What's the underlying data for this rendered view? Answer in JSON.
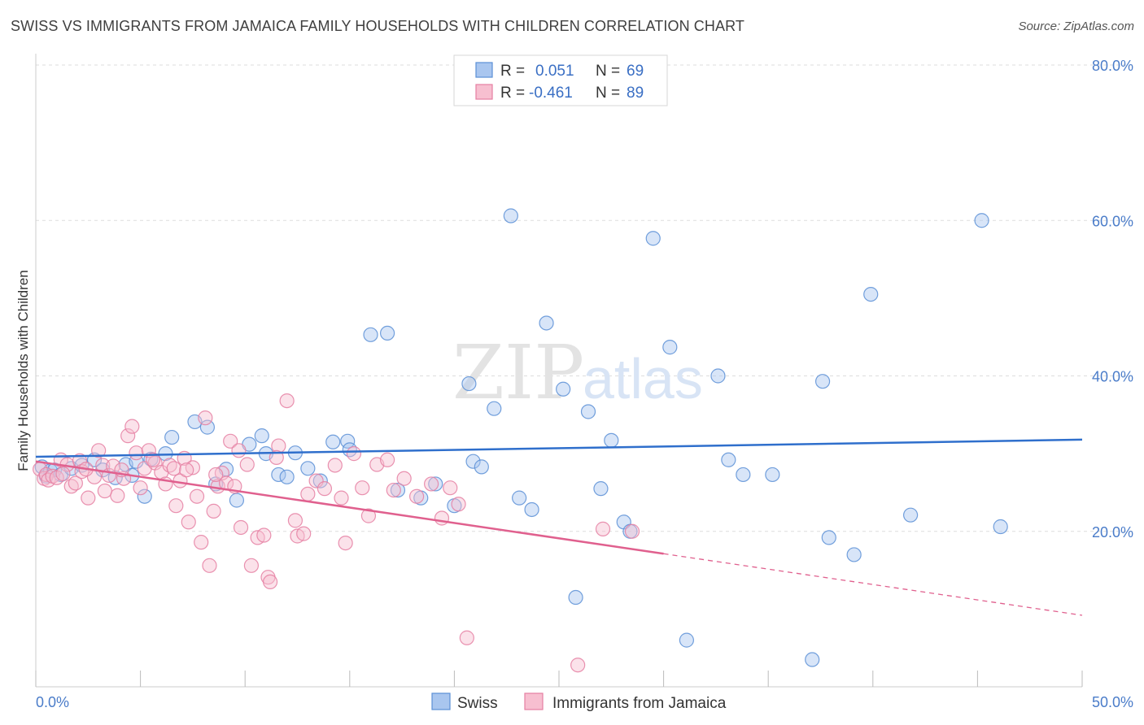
{
  "title": "SWISS VS IMMIGRANTS FROM JAMAICA FAMILY HOUSEHOLDS WITH CHILDREN CORRELATION CHART",
  "source": "Source: ZipAtlas.com",
  "watermark": {
    "zip": "ZIP",
    "atlas": "atlas"
  },
  "colors": {
    "swiss_fill": "#a9c6ef",
    "swiss_stroke": "#5b8fd6",
    "swiss_line": "#2f6fcc",
    "jamaica_fill": "#f7bfd0",
    "jamaica_stroke": "#e57fa2",
    "jamaica_line": "#e0608e",
    "tick_text": "#4a7cc9",
    "grid": "#dddddd"
  },
  "legend": {
    "rows": [
      {
        "r_label": "R =",
        "r_value": "0.051",
        "n_label": "N =",
        "n_value": "69"
      },
      {
        "r_label": "R =",
        "r_value": "-0.461",
        "n_label": "N =",
        "n_value": "89"
      }
    ]
  },
  "bottom_legend": {
    "swiss": "Swiss",
    "jamaica": "Immigrants from Jamaica"
  },
  "chart_data": {
    "type": "scatter",
    "title": "SWISS VS IMMIGRANTS FROM JAMAICA FAMILY HOUSEHOLDS WITH CHILDREN CORRELATION CHART",
    "xlabel": "",
    "ylabel": "Family Households with Children",
    "xlim": [
      0,
      50
    ],
    "ylim": [
      0,
      80
    ],
    "x_tick_labels": [
      "0.0%",
      "50.0%"
    ],
    "y_tick_labels": [
      "20.0%",
      "40.0%",
      "60.0%",
      "80.0%"
    ],
    "y_ticks": [
      20,
      40,
      60,
      80
    ],
    "grid": true,
    "legend_position": "top-center",
    "series": [
      {
        "name": "Swiss",
        "R": 0.051,
        "N": 69,
        "trend": {
          "x": [
            0,
            50
          ],
          "y": [
            29.6,
            31.8
          ],
          "dashed_from": null
        },
        "points": [
          [
            0.3,
            28.3
          ],
          [
            0.5,
            27.1
          ],
          [
            0.7,
            27.8
          ],
          [
            0.9,
            27.9
          ],
          [
            1.2,
            27.3
          ],
          [
            1.7,
            28.1
          ],
          [
            2.2,
            28.5
          ],
          [
            2.8,
            29.2
          ],
          [
            3.2,
            27.9
          ],
          [
            3.8,
            26.9
          ],
          [
            4.3,
            28.6
          ],
          [
            4.8,
            29.0
          ],
          [
            5.2,
            24.5
          ],
          [
            5.5,
            29.3
          ],
          [
            6.2,
            30.0
          ],
          [
            6.5,
            32.1
          ],
          [
            7.6,
            34.1
          ],
          [
            8.2,
            33.4
          ],
          [
            8.6,
            26.1
          ],
          [
            9.1,
            28.0
          ],
          [
            9.6,
            24.0
          ],
          [
            10.2,
            31.2
          ],
          [
            10.8,
            32.3
          ],
          [
            11.6,
            27.3
          ],
          [
            12.4,
            30.1
          ],
          [
            13.0,
            28.1
          ],
          [
            14.2,
            31.5
          ],
          [
            14.9,
            31.6
          ],
          [
            16.0,
            45.3
          ],
          [
            16.8,
            45.5
          ],
          [
            18.4,
            24.3
          ],
          [
            19.1,
            26.1
          ],
          [
            20.0,
            23.3
          ],
          [
            20.7,
            39.0
          ],
          [
            20.9,
            29.0
          ],
          [
            21.3,
            28.3
          ],
          [
            21.9,
            35.8
          ],
          [
            22.7,
            60.6
          ],
          [
            23.1,
            24.3
          ],
          [
            23.7,
            22.8
          ],
          [
            24.4,
            46.8
          ],
          [
            25.2,
            38.3
          ],
          [
            25.8,
            11.5
          ],
          [
            26.4,
            35.4
          ],
          [
            27.0,
            25.5
          ],
          [
            27.5,
            31.7
          ],
          [
            28.1,
            21.2
          ],
          [
            28.4,
            20.0
          ],
          [
            29.5,
            57.7
          ],
          [
            30.3,
            43.7
          ],
          [
            31.1,
            6.0
          ],
          [
            32.6,
            40.0
          ],
          [
            33.1,
            29.2
          ],
          [
            33.8,
            27.3
          ],
          [
            35.2,
            27.3
          ],
          [
            37.1,
            3.5
          ],
          [
            37.6,
            39.3
          ],
          [
            37.9,
            19.2
          ],
          [
            39.1,
            17.0
          ],
          [
            39.9,
            50.5
          ],
          [
            41.8,
            22.1
          ],
          [
            45.2,
            60.0
          ],
          [
            46.1,
            20.6
          ],
          [
            11.0,
            30.0
          ],
          [
            12.0,
            27.0
          ],
          [
            15.0,
            30.5
          ],
          [
            17.3,
            25.3
          ],
          [
            13.6,
            26.5
          ],
          [
            4.6,
            27.2
          ]
        ]
      },
      {
        "name": "Immigrants from Jamaica",
        "R": -0.461,
        "N": 89,
        "trend": {
          "x": [
            0,
            50
          ],
          "y": [
            29.0,
            9.2
          ],
          "solid_until_x": 30
        },
        "points": [
          [
            0.2,
            28.0
          ],
          [
            0.4,
            26.8
          ],
          [
            0.5,
            27.3
          ],
          [
            0.6,
            26.6
          ],
          [
            0.8,
            27.1
          ],
          [
            1.0,
            26.9
          ],
          [
            1.2,
            29.2
          ],
          [
            1.5,
            28.6
          ],
          [
            1.7,
            25.8
          ],
          [
            1.9,
            26.2
          ],
          [
            2.1,
            29.1
          ],
          [
            2.2,
            27.7
          ],
          [
            2.5,
            24.3
          ],
          [
            2.8,
            27.0
          ],
          [
            3.0,
            30.4
          ],
          [
            3.2,
            28.5
          ],
          [
            3.5,
            27.2
          ],
          [
            3.7,
            28.4
          ],
          [
            3.9,
            24.6
          ],
          [
            4.2,
            26.8
          ],
          [
            4.4,
            32.3
          ],
          [
            4.6,
            33.5
          ],
          [
            4.8,
            30.1
          ],
          [
            5.0,
            25.6
          ],
          [
            5.2,
            28.1
          ],
          [
            5.4,
            30.4
          ],
          [
            5.7,
            28.8
          ],
          [
            6.0,
            27.6
          ],
          [
            6.2,
            26.1
          ],
          [
            6.4,
            28.5
          ],
          [
            6.7,
            23.3
          ],
          [
            6.9,
            26.5
          ],
          [
            7.1,
            29.4
          ],
          [
            7.3,
            21.2
          ],
          [
            7.5,
            28.2
          ],
          [
            7.7,
            24.5
          ],
          [
            7.9,
            18.6
          ],
          [
            8.1,
            34.6
          ],
          [
            8.3,
            15.6
          ],
          [
            8.5,
            22.6
          ],
          [
            8.7,
            25.8
          ],
          [
            8.9,
            27.5
          ],
          [
            9.1,
            26.2
          ],
          [
            9.3,
            31.6
          ],
          [
            9.5,
            25.8
          ],
          [
            9.8,
            20.5
          ],
          [
            10.1,
            28.6
          ],
          [
            10.3,
            15.6
          ],
          [
            10.6,
            19.2
          ],
          [
            10.9,
            19.5
          ],
          [
            11.1,
            14.1
          ],
          [
            11.2,
            13.5
          ],
          [
            11.6,
            31.0
          ],
          [
            12.0,
            36.8
          ],
          [
            12.4,
            21.4
          ],
          [
            12.5,
            19.4
          ],
          [
            12.8,
            19.7
          ],
          [
            13.4,
            26.5
          ],
          [
            13.8,
            25.5
          ],
          [
            14.3,
            28.5
          ],
          [
            14.6,
            24.3
          ],
          [
            14.8,
            18.5
          ],
          [
            15.2,
            30.0
          ],
          [
            15.6,
            25.6
          ],
          [
            15.9,
            22.0
          ],
          [
            16.3,
            28.6
          ],
          [
            16.8,
            29.2
          ],
          [
            17.1,
            25.3
          ],
          [
            17.6,
            26.8
          ],
          [
            18.2,
            24.5
          ],
          [
            18.9,
            26.1
          ],
          [
            19.4,
            21.7
          ],
          [
            19.8,
            25.6
          ],
          [
            20.2,
            23.5
          ],
          [
            20.6,
            6.3
          ],
          [
            1.3,
            27.4
          ],
          [
            2.4,
            28.0
          ],
          [
            3.3,
            25.2
          ],
          [
            4.1,
            27.9
          ],
          [
            5.6,
            29.2
          ],
          [
            6.6,
            28.1
          ],
          [
            7.2,
            27.9
          ],
          [
            8.6,
            27.3
          ],
          [
            9.7,
            30.4
          ],
          [
            11.5,
            29.5
          ],
          [
            13.0,
            24.8
          ],
          [
            25.9,
            2.8
          ],
          [
            27.1,
            20.3
          ],
          [
            28.5,
            20.0
          ]
        ]
      }
    ]
  }
}
